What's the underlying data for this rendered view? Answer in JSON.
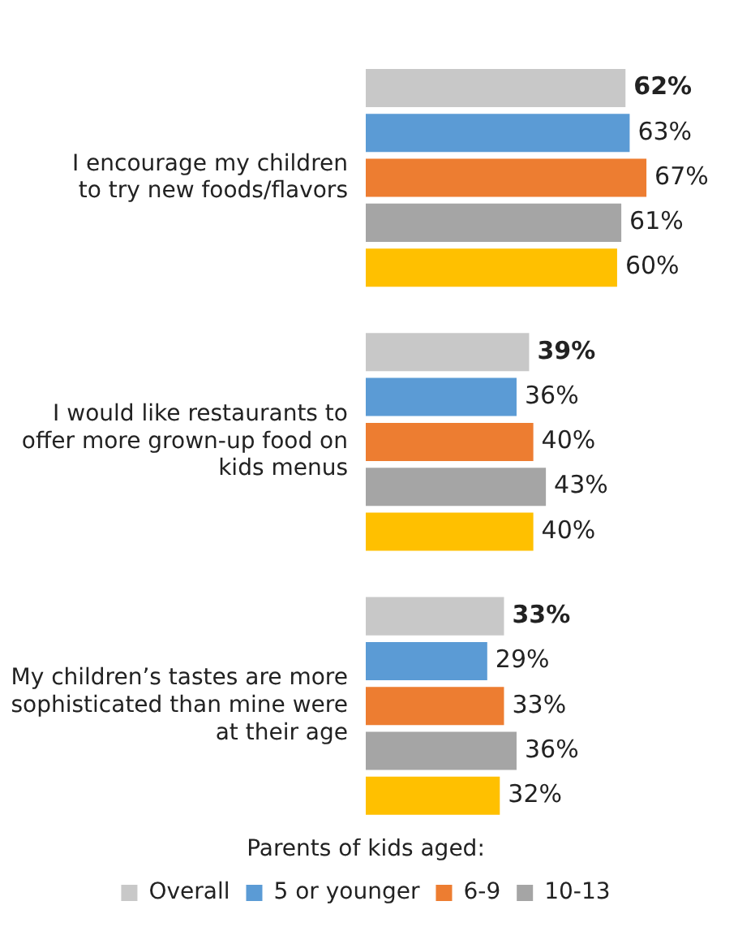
{
  "chart_data": {
    "type": "bar",
    "orientation": "horizontal",
    "categories": [
      "I encourage my children\nto try new foods/flavors",
      "I would like restaurants to\noffer more grown-up food on\nkids menus",
      "My children’s tastes are more\nsophisticated than mine were\nat their age"
    ],
    "series": [
      {
        "name": "Overall",
        "color": "#c8c8c8",
        "values": [
          62,
          39,
          33
        ],
        "value_labels": [
          "62%",
          "39%",
          "33%"
        ]
      },
      {
        "name": "5 or younger",
        "color": "#5b9bd5",
        "values": [
          63,
          36,
          29
        ],
        "value_labels": [
          "63%",
          "36%",
          "29%"
        ]
      },
      {
        "name": "6-9",
        "color": "#ed7d31",
        "values": [
          67,
          40,
          33
        ],
        "value_labels": [
          "67%",
          "40%",
          "33%"
        ]
      },
      {
        "name": "10-13",
        "color": "#a5a5a5",
        "values": [
          61,
          43,
          36
        ],
        "value_labels": [
          "61%",
          "43%",
          "36%"
        ]
      },
      {
        "color": "#ffc000",
        "values": [
          60,
          40,
          32
        ],
        "value_labels": [
          "60%",
          "40%",
          "32%"
        ]
      }
    ],
    "legend": "bottom",
    "legend_title": "Parents of kids aged:",
    "grid": false
  }
}
